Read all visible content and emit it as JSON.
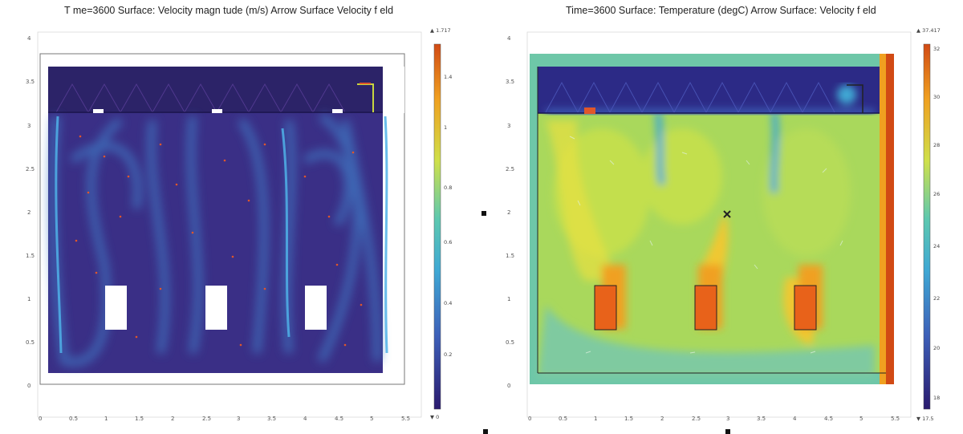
{
  "left_plot": {
    "title": "T me=3600   Surface: Velocity magn tude (m/s)  Arrow Surface  Velocity f eld",
    "colorbar": {
      "max_label": "▲ 1.717",
      "min_label": "▼ 0",
      "labels": [
        "1.4",
        "1",
        "0.8",
        "0.6",
        "0.4",
        "0.2"
      ]
    },
    "colormap": [
      "#2a1a6e",
      "#3d5fb8",
      "#3fa8d4",
      "#5dc8b0",
      "#cfe04a",
      "#f0a020",
      "#d14a14"
    ]
  },
  "right_plot": {
    "title": "Time=3600   Surface: Temperature (degC)  Arrow Surface: Velocity f eld",
    "colorbar": {
      "max_label": "▲ 37.417",
      "min_label": "▼ 17.5",
      "labels": [
        "32",
        "30",
        "28",
        "26",
        "24",
        "22",
        "20",
        "18"
      ]
    },
    "colormap": [
      "#2a1a6e",
      "#3d5fb8",
      "#3fa8d4",
      "#5dc8b0",
      "#cfe04a",
      "#f0a020",
      "#d14a14"
    ]
  },
  "y_ticks": [
    "3.5",
    "3",
    "2.5",
    "2",
    "1.5",
    "1",
    "0.5",
    "0"
  ],
  "x_ticks": [
    "0",
    "0.5",
    "1",
    "1.5",
    "2",
    "2.5",
    "3",
    "3.5",
    "4",
    "4.5",
    "5",
    "5.5"
  ],
  "y_top_tick": "4"
}
